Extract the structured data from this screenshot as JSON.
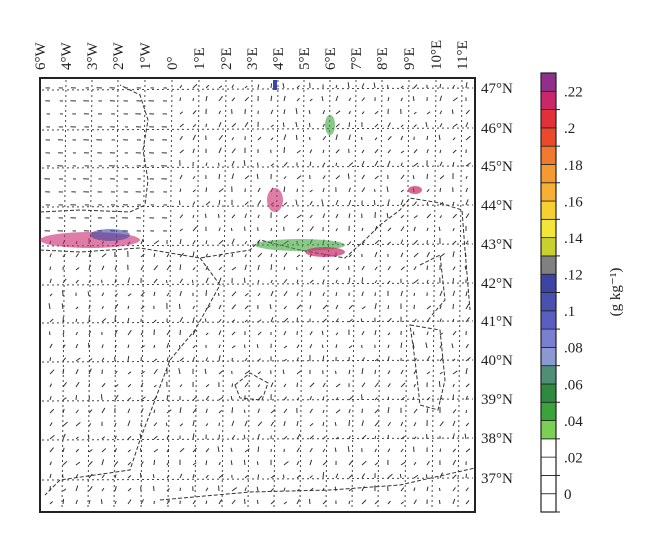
{
  "map": {
    "longitude_labels": [
      "6°W",
      "4°W",
      "3°W",
      "2°W",
      "1°W",
      "0°",
      "1°E",
      "2°E",
      "3°E",
      "4°E",
      "5°E",
      "6°E",
      "7°E",
      "8°E",
      "9°E",
      "10°E",
      "11°E"
    ],
    "latitude_labels": [
      "47°N",
      "46°N",
      "45°N",
      "44°N",
      "43°N",
      "42°N",
      "41°N",
      "40°N",
      "39°N",
      "38°N",
      "37°N"
    ]
  },
  "colorbar": {
    "label": "(g kg⁻¹)",
    "lim": [
      0,
      0.24
    ],
    "ticks": [
      0,
      {
        "value": 0.02,
        "label": ".02"
      },
      {
        "value": 0.04,
        "label": ".04"
      },
      {
        "value": 0.06,
        "label": ".06"
      },
      {
        "value": 0.08,
        "label": ".08"
      },
      {
        "value": 0.1,
        "label": ".1"
      },
      {
        "value": 0.12,
        "label": ".12"
      },
      {
        "value": 0.14,
        "label": ".14"
      },
      {
        "value": 0.16,
        "label": ".16"
      },
      {
        "value": 0.18,
        "label": ".18"
      },
      {
        "value": 0.2,
        "label": ".2"
      },
      {
        "value": 0.22,
        "label": ".22"
      }
    ],
    "colors": [
      "#ffffff",
      "#ffffff",
      "#ffffff",
      "#ffffff",
      "#7ccf55",
      "#3aa33a",
      "#2e8a3e",
      "#4f8f78",
      "#8a9ad0",
      "#7b7fd0",
      "#5a5ec0",
      "#4850b0",
      "#3c44a4",
      "#808080",
      "#c8d030",
      "#f2e63a",
      "#f5d030",
      "#f7b035",
      "#f59a30",
      "#f07a30",
      "#ea4a2a",
      "#e0303a",
      "#c8286a",
      "#90308a"
    ]
  }
}
